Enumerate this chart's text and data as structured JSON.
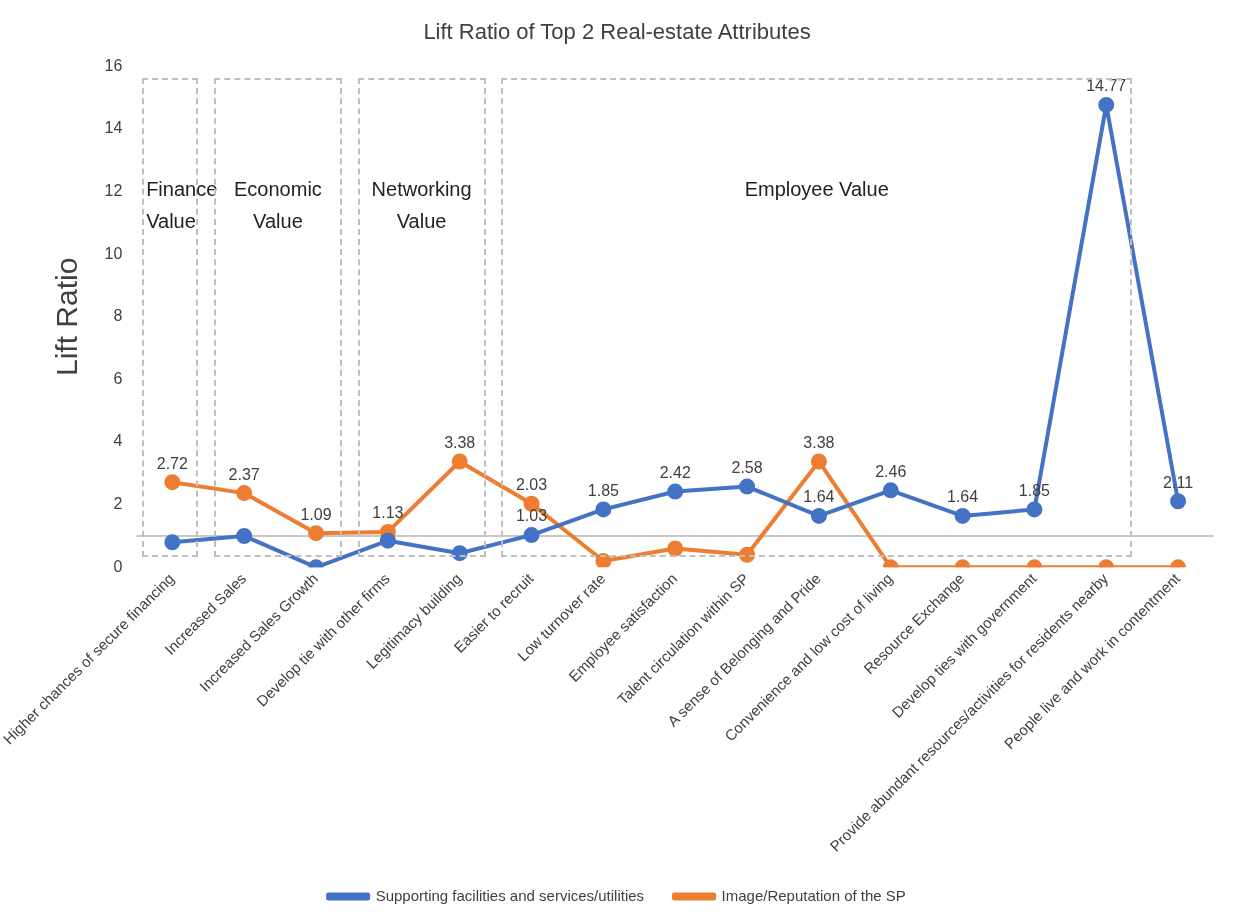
{
  "chart_data": {
    "type": "line",
    "title": "Lift Ratio of Top 2 Real-estate Attributes",
    "ylabel": "Lift Ratio",
    "categories": [
      "Higher chances of secure financing",
      "Increased Sales",
      "Increased Sales Growth",
      "Develop tie with other firms",
      "Legitimacy building",
      "Easier to recruit",
      "Low turnover rate",
      "Employee satisfaction",
      "Talent circulation within SP",
      "A sense of Belonging and Pride",
      "Convenience and low cost of living",
      "Resource Exchange",
      "Develop ties with government",
      "Provide abundant resources/activities for residents nearby",
      "People live and work in contentment"
    ],
    "series": [
      {
        "name": "Supporting facilities and services/utilities",
        "color": "#4472c4",
        "values": [
          0.8,
          1.0,
          0,
          0.85,
          0.45,
          1.03,
          1.85,
          2.42,
          2.58,
          1.64,
          2.46,
          1.64,
          1.85,
          14.77,
          2.11
        ],
        "value_labels": [
          null,
          null,
          null,
          null,
          null,
          "1.03",
          "1.85",
          "2.42",
          "2.58",
          "1.64",
          "2.46",
          "1.64",
          "1.85",
          "14.77",
          "2.11"
        ]
      },
      {
        "name": "Image/Reputation of the SP",
        "color": "#ed7d31",
        "values": [
          2.72,
          2.37,
          1.09,
          1.13,
          3.38,
          2.03,
          0.2,
          0.6,
          0.4,
          3.38,
          0,
          0,
          0,
          0,
          0
        ],
        "value_labels": [
          "2.72",
          "2.37",
          "1.09",
          "1.13",
          "3.38",
          "2.03",
          null,
          null,
          null,
          "3.38",
          null,
          null,
          null,
          null,
          null
        ]
      }
    ],
    "ylim": [
      0,
      16
    ],
    "yticks": [
      0,
      2,
      4,
      6,
      8,
      10,
      12,
      14,
      16
    ],
    "grid": false,
    "legend": "bottom",
    "marker": "circle",
    "line_style": "solid",
    "ref_lines": [
      {
        "axis": "y",
        "value": 1,
        "color": "#c8c8c8",
        "line_style": "solid"
      }
    ],
    "annotations": [
      "Finance Value",
      "Economic Value",
      "Networking Value",
      "Employee Value"
    ]
  }
}
